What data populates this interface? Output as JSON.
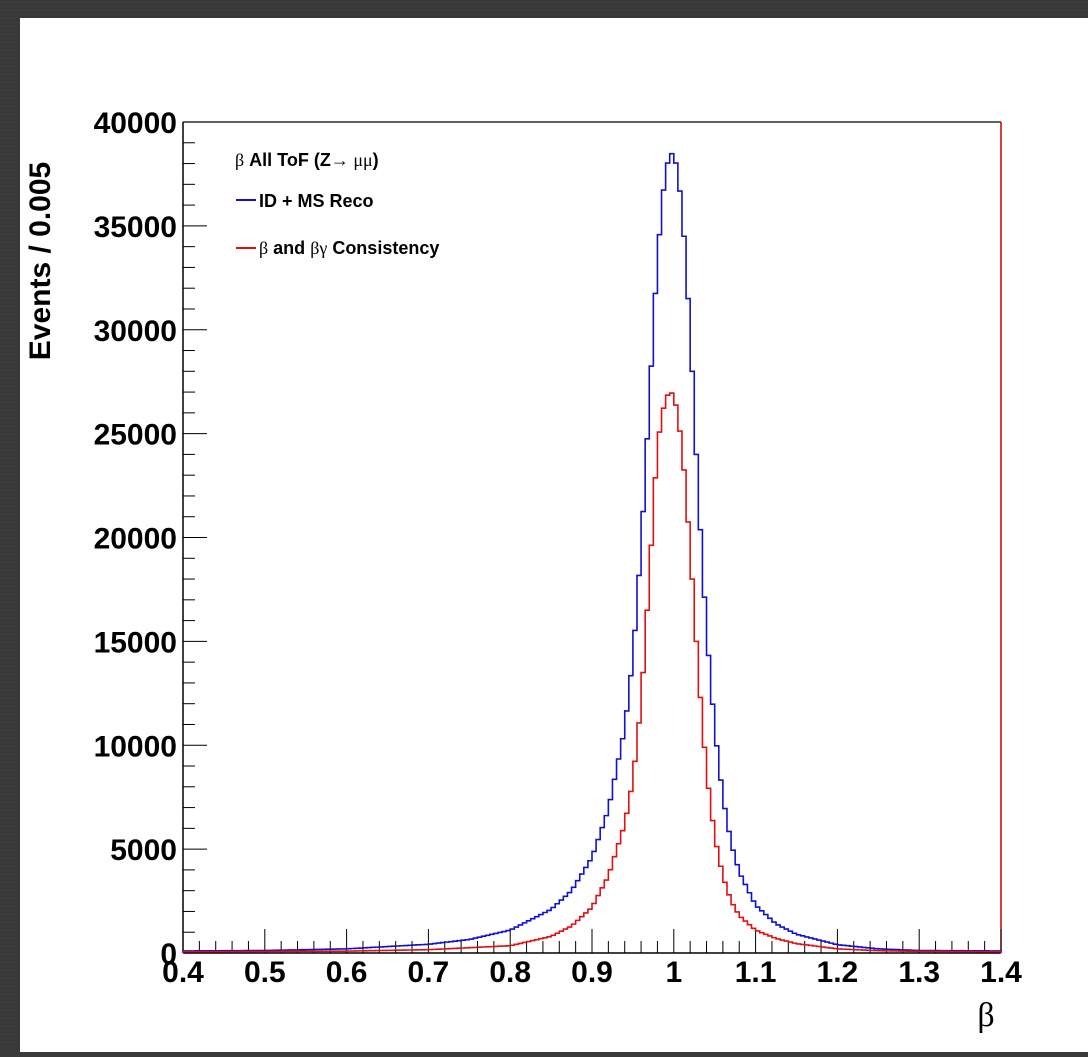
{
  "chart_data": {
    "type": "histogram-step",
    "title": "",
    "xlabel": "β",
    "ylabel": "Events / 0.005",
    "xlim": [
      0.4,
      1.4
    ],
    "ylim": [
      0,
      40000
    ],
    "x_ticks": [
      "0.4",
      "0.5",
      "0.6",
      "0.7",
      "0.8",
      "0.9",
      "1",
      "1.1",
      "1.2",
      "1.3",
      "1.4"
    ],
    "y_ticks": [
      "0",
      "5000",
      "10000",
      "15000",
      "20000",
      "25000",
      "30000",
      "35000",
      "40000"
    ],
    "bin_width": 0.005,
    "legend": {
      "header_symbol": "β",
      "header_text": " All ToF (Z",
      "header_arrow": "→ ",
      "header_mumu": "μμ",
      "header_close": ")"
    },
    "series": [
      {
        "name": "ID + MS Reco",
        "color": "#1010d0",
        "x": [
          0.4,
          0.5,
          0.6,
          0.7,
          0.75,
          0.8,
          0.85,
          0.875,
          0.9,
          0.92,
          0.94,
          0.95,
          0.96,
          0.97,
          0.98,
          0.99,
          1.0,
          1.01,
          1.02,
          1.03,
          1.04,
          1.05,
          1.06,
          1.07,
          1.08,
          1.1,
          1.125,
          1.15,
          1.2,
          1.25,
          1.3,
          1.4
        ],
        "y": [
          100,
          120,
          200,
          420,
          650,
          1100,
          2100,
          3000,
          4600,
          6900,
          10800,
          14200,
          19500,
          26500,
          33500,
          37800,
          38700,
          36000,
          30000,
          22000,
          15500,
          10800,
          7500,
          5300,
          3900,
          2300,
          1400,
          900,
          400,
          200,
          120,
          100
        ]
      },
      {
        "name_symbol_1": "β",
        "name_text_1": " and ",
        "name_symbol_2": "βγ",
        "name_text_2": "  Consistency",
        "color": "#e01010",
        "x": [
          0.4,
          0.5,
          0.6,
          0.7,
          0.8,
          0.85,
          0.875,
          0.9,
          0.92,
          0.94,
          0.95,
          0.96,
          0.97,
          0.98,
          0.99,
          1.0,
          1.01,
          1.02,
          1.03,
          1.04,
          1.05,
          1.06,
          1.07,
          1.08,
          1.1,
          1.125,
          1.15,
          1.2,
          1.25,
          1.3,
          1.4
        ],
        "y": [
          60,
          70,
          90,
          160,
          350,
          800,
          1300,
          2200,
          3700,
          6200,
          8300,
          12000,
          18000,
          24500,
          26800,
          27000,
          24500,
          19500,
          13500,
          8700,
          5600,
          3700,
          2500,
          1800,
          1100,
          700,
          450,
          200,
          110,
          80,
          60
        ]
      }
    ],
    "frame_colors": {
      "axis": "#000000",
      "right_border": "#cc0000"
    }
  }
}
